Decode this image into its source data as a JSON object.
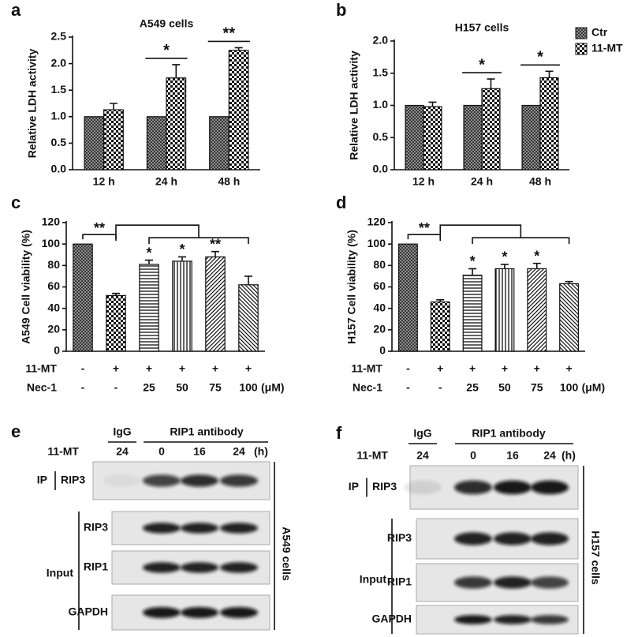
{
  "chart_data": [
    {
      "type": "bar",
      "panel": "a",
      "title": "A549 cells",
      "y_label": "Relative LDH activity",
      "categories": [
        "12 h",
        "24 h",
        "48 h"
      ],
      "series": [
        {
          "name": "Ctr",
          "pattern": "crosshatch",
          "values": [
            1,
            1,
            1
          ]
        },
        {
          "name": "11-MT",
          "pattern": "checker",
          "values": [
            1.13,
            1.73,
            2.25
          ],
          "errors": [
            0.12,
            0.25,
            0.05
          ]
        }
      ],
      "significance": [
        null,
        "*",
        "**"
      ],
      "ylim": [
        0,
        2.5
      ],
      "yticks": [
        {
          "value": 0,
          "label": "0.0"
        },
        0.5,
        {
          "value": 1,
          "label": "1.0"
        },
        1.5,
        {
          "value": 2,
          "label": "2.0"
        },
        2.5
      ]
    },
    {
      "type": "bar",
      "panel": "b",
      "title": "H157 cells",
      "y_label": "Relative LDH activity",
      "categories": [
        "12 h",
        "24 h",
        "48 h"
      ],
      "series": [
        {
          "name": "Ctr",
          "pattern": "crosshatch",
          "values": [
            1,
            1,
            1
          ]
        },
        {
          "name": "11-MT",
          "pattern": "checker",
          "values": [
            0.98,
            1.26,
            1.43
          ],
          "errors": [
            0.07,
            0.15,
            0.1
          ]
        }
      ],
      "significance": [
        null,
        "*",
        "*"
      ],
      "legend": "upper right",
      "ylim": [
        0,
        2
      ],
      "yticks": [
        {
          "value": 0,
          "label": "0.0"
        },
        0.5,
        {
          "value": 1,
          "label": "1.0"
        },
        1.5,
        {
          "value": 2,
          "label": "2.0"
        }
      ]
    },
    {
      "type": "bar",
      "panel": "c",
      "y_label": "A549 Cell viability (%)",
      "values": [
        100,
        52,
        81,
        84,
        88,
        62
      ],
      "errors": [
        null,
        2,
        4,
        4,
        5,
        8
      ],
      "patterns": [
        "crosshatch",
        "checker",
        "hlines",
        "vlines",
        "diag",
        "antidiag"
      ],
      "significance": [
        null,
        null,
        "*",
        "*",
        "**",
        null
      ],
      "bracket_label": "**",
      "conditions": [
        {
          "name": "11-MT",
          "values": [
            "-",
            "+",
            "+",
            "+",
            "+",
            "+"
          ]
        },
        {
          "name": "Nec-1",
          "values": [
            "-",
            "-",
            "25",
            "50",
            "75",
            "100"
          ],
          "unit": "(μM)"
        }
      ],
      "ylim": [
        0,
        120
      ],
      "yticks": [
        0,
        20,
        40,
        60,
        80,
        100,
        120
      ]
    },
    {
      "type": "bar",
      "panel": "d",
      "y_label": "H157 Cell viability (%)",
      "values": [
        100,
        46,
        71,
        77,
        77,
        63
      ],
      "errors": [
        null,
        2,
        6,
        4,
        5,
        2
      ],
      "patterns": [
        "crosshatch",
        "checker",
        "hlines",
        "vlines",
        "diag",
        "antidiag"
      ],
      "significance": [
        null,
        null,
        "*",
        "*",
        "*",
        null
      ],
      "bracket_label": "**",
      "conditions": [
        {
          "name": "11-MT",
          "values": [
            "-",
            "+",
            "+",
            "+",
            "+",
            "+"
          ]
        },
        {
          "name": "Nec-1",
          "values": [
            "-",
            "-",
            "25",
            "50",
            "75",
            "100"
          ],
          "unit": "(μM)"
        }
      ],
      "ylim": [
        0,
        120
      ],
      "yticks": [
        0,
        20,
        40,
        60,
        80,
        100,
        120
      ]
    }
  ],
  "blots": [
    {
      "panel": "e",
      "group_labels": [
        "IgG",
        "RIP1 antibody"
      ],
      "treatment": "11-MT",
      "times": [
        "24",
        "0",
        "16",
        "24"
      ],
      "unit": "(h)",
      "ip": "IP",
      "ip_target": "RIP3",
      "input": "Input",
      "input_targets": [
        "RIP3",
        "RIP1",
        "GAPDH"
      ],
      "cell_line": "A549 cells"
    },
    {
      "panel": "f",
      "group_labels": [
        "IgG",
        "RIP1 antibody"
      ],
      "treatment": "11-MT",
      "times": [
        "24",
        "0",
        "16",
        "24"
      ],
      "unit": "(h)",
      "ip": "IP",
      "ip_target": "RIP3",
      "input": "Input",
      "input_targets": [
        "RIP3",
        "RIP1",
        "GAPDH"
      ],
      "cell_line": "H157 cells"
    }
  ]
}
